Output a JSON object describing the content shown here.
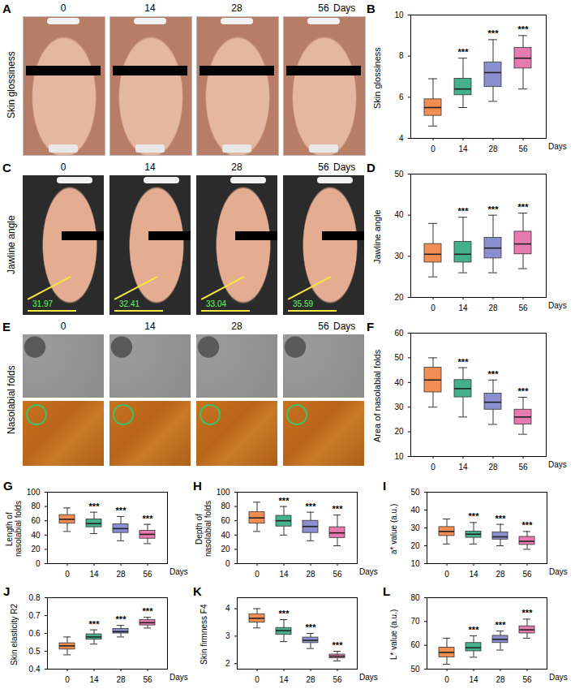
{
  "photo_panels": [
    {
      "letter": "A",
      "label": "Skin glossiness",
      "days": [
        "0",
        "14",
        "28",
        "56"
      ],
      "days_unit": "Days"
    },
    {
      "letter": "C",
      "label": "Jawline angle",
      "days": [
        "0",
        "14",
        "28",
        "56"
      ],
      "days_unit": "Days",
      "angle_labels": [
        31.97,
        32.41,
        33.04,
        35.59
      ]
    },
    {
      "letter": "E",
      "label": "Nasolabial folds",
      "days": [
        "0",
        "14",
        "28",
        "56"
      ],
      "days_unit": "Days"
    }
  ],
  "chart_data": [
    {
      "letter": "B",
      "type": "box",
      "y_label": "Skin glossiness",
      "x_label": "Days",
      "categories": [
        "0",
        "14",
        "28",
        "56"
      ],
      "colors": [
        "#f28e54",
        "#45b08c",
        "#8b8fd0",
        "#e77bb0"
      ],
      "min": [
        4.6,
        5.5,
        5.8,
        6.4
      ],
      "q1": [
        5.1,
        6.1,
        6.5,
        7.4
      ],
      "median": [
        5.5,
        6.4,
        7.2,
        7.9
      ],
      "q3": [
        5.9,
        6.9,
        7.7,
        8.4
      ],
      "max": [
        6.9,
        7.9,
        8.8,
        9.0
      ],
      "significance": [
        null,
        "***",
        "***",
        "***"
      ],
      "ylim": [
        4,
        10
      ],
      "yticks": [
        4,
        6,
        8,
        10
      ]
    },
    {
      "letter": "D",
      "type": "box",
      "y_label": "Jawline angle",
      "x_label": "Days",
      "categories": [
        "0",
        "14",
        "28",
        "56"
      ],
      "colors": [
        "#f28e54",
        "#45b08c",
        "#8b8fd0",
        "#e77bb0"
      ],
      "min": [
        25,
        26,
        26,
        27
      ],
      "q1": [
        28.5,
        28.5,
        29.5,
        30.5
      ],
      "median": [
        30.5,
        30.5,
        32,
        33
      ],
      "q3": [
        33,
        33.5,
        34.5,
        36
      ],
      "max": [
        38,
        39.5,
        40,
        40.5
      ],
      "significance": [
        null,
        "***",
        "***",
        "***"
      ],
      "ylim": [
        20,
        50
      ],
      "yticks": [
        20,
        30,
        40,
        50
      ]
    },
    {
      "letter": "F",
      "type": "box",
      "y_label": "Area of nasolabial folds",
      "x_label": "Days",
      "categories": [
        "0",
        "14",
        "28",
        "56"
      ],
      "colors": [
        "#f28e54",
        "#45b08c",
        "#8b8fd0",
        "#e77bb0"
      ],
      "min": [
        30,
        26,
        23,
        19
      ],
      "q1": [
        36,
        34,
        29,
        23
      ],
      "median": [
        41,
        37.5,
        32,
        26
      ],
      "q3": [
        46,
        41,
        35.5,
        29
      ],
      "max": [
        50,
        46,
        41,
        34
      ],
      "significance": [
        null,
        "***",
        "***",
        "***"
      ],
      "ylim": [
        10,
        60
      ],
      "yticks": [
        10,
        20,
        30,
        40,
        50,
        60
      ]
    },
    {
      "letter": "G",
      "type": "box",
      "y_label": "Length of nasolabial folds",
      "x_label": "Days",
      "categories": [
        "0",
        "14",
        "28",
        "56"
      ],
      "colors": [
        "#f28e54",
        "#45b08c",
        "#8b8fd0",
        "#e77bb0"
      ],
      "min": [
        45,
        42,
        32,
        28
      ],
      "q1": [
        56,
        51,
        43,
        35
      ],
      "median": [
        62,
        56,
        49,
        41
      ],
      "q3": [
        68,
        62,
        55,
        46
      ],
      "max": [
        78,
        72,
        66,
        55
      ],
      "significance": [
        null,
        "***",
        "***",
        "***"
      ],
      "ylim": [
        0,
        100
      ],
      "yticks": [
        0,
        20,
        40,
        60,
        80,
        100
      ]
    },
    {
      "letter": "H",
      "type": "box",
      "y_label": "Depth of nasolabial folds",
      "x_label": "Days",
      "categories": [
        "0",
        "14",
        "28",
        "56"
      ],
      "colors": [
        "#f28e54",
        "#45b08c",
        "#8b8fd0",
        "#e77bb0"
      ],
      "min": [
        45,
        40,
        32,
        25
      ],
      "q1": [
        56,
        52,
        43,
        36
      ],
      "median": [
        64,
        60,
        52,
        43
      ],
      "q3": [
        72,
        67,
        60,
        51
      ],
      "max": [
        86,
        80,
        72,
        68
      ],
      "significance": [
        null,
        "***",
        "***",
        "***"
      ],
      "ylim": [
        0,
        100
      ],
      "yticks": [
        0,
        20,
        40,
        60,
        80,
        100
      ]
    },
    {
      "letter": "I",
      "type": "box",
      "y_label": "a* value (a.u.)",
      "x_label": "Days",
      "categories": [
        "0",
        "14",
        "28",
        "56"
      ],
      "colors": [
        "#f28e54",
        "#45b08c",
        "#8b8fd0",
        "#e77bb0"
      ],
      "min": [
        21,
        21,
        20,
        18
      ],
      "q1": [
        25.5,
        24.5,
        23.5,
        20.5
      ],
      "median": [
        28,
        26.5,
        25,
        22.5
      ],
      "q3": [
        30.5,
        28,
        27.5,
        25
      ],
      "max": [
        35,
        33,
        32,
        28
      ],
      "significance": [
        null,
        "***",
        "***",
        "***"
      ],
      "ylim": [
        10,
        50
      ],
      "yticks": [
        10,
        20,
        30,
        40,
        50
      ]
    },
    {
      "letter": "J",
      "type": "box",
      "y_label": "Skin elasticity R2",
      "x_label": "Days",
      "categories": [
        "0",
        "14",
        "28",
        "56"
      ],
      "colors": [
        "#f28e54",
        "#45b08c",
        "#8b8fd0",
        "#e77bb0"
      ],
      "min": [
        0.48,
        0.54,
        0.58,
        0.63
      ],
      "q1": [
        0.51,
        0.565,
        0.6,
        0.645
      ],
      "median": [
        0.53,
        0.58,
        0.61,
        0.66
      ],
      "q3": [
        0.545,
        0.595,
        0.625,
        0.675
      ],
      "max": [
        0.58,
        0.62,
        0.645,
        0.69
      ],
      "significance": [
        null,
        "***",
        "***",
        "***"
      ],
      "ylim": [
        0.4,
        0.8
      ],
      "yticks": [
        0.4,
        0.5,
        0.6,
        0.7,
        0.8
      ]
    },
    {
      "letter": "K",
      "type": "box",
      "y_label": "Skin firmness F4",
      "x_label": "Days",
      "categories": [
        "0",
        "14",
        "28",
        "56"
      ],
      "colors": [
        "#f28e54",
        "#45b08c",
        "#8b8fd0",
        "#e77bb0"
      ],
      "min": [
        3.3,
        2.8,
        2.55,
        2.1
      ],
      "q1": [
        3.5,
        3.05,
        2.75,
        2.2
      ],
      "median": [
        3.65,
        3.2,
        2.85,
        2.27
      ],
      "q3": [
        3.8,
        3.3,
        2.95,
        2.33
      ],
      "max": [
        4.0,
        3.6,
        3.1,
        2.45
      ],
      "significance": [
        null,
        "***",
        "***",
        "***"
      ],
      "ylim": [
        1.8,
        4.4
      ],
      "yticks": [
        2,
        3,
        4
      ]
    },
    {
      "letter": "L",
      "type": "box",
      "y_label": "L* value (a.u.)",
      "x_label": "Days",
      "categories": [
        "0",
        "14",
        "28",
        "56"
      ],
      "colors": [
        "#f28e54",
        "#45b08c",
        "#8b8fd0",
        "#e77bb0"
      ],
      "min": [
        52,
        55,
        58,
        63
      ],
      "q1": [
        55,
        57.5,
        61,
        65
      ],
      "median": [
        57,
        59,
        62.5,
        66.5
      ],
      "q3": [
        59,
        61,
        64,
        68
      ],
      "max": [
        63,
        64,
        66,
        71
      ],
      "significance": [
        null,
        "***",
        "***",
        "***"
      ],
      "ylim": [
        50,
        80
      ],
      "yticks": [
        50,
        60,
        70,
        80
      ]
    }
  ]
}
